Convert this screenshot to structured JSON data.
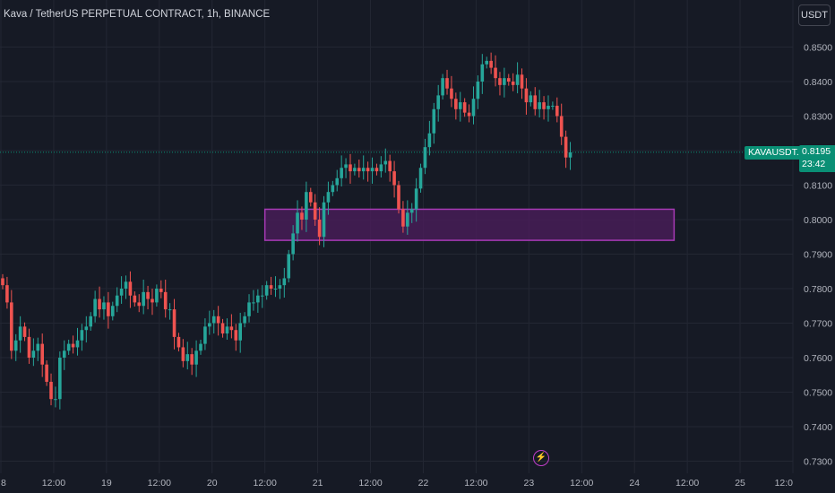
{
  "header": {
    "title": "Kava / TetherUS PERPETUAL CONTRACT, 1h, BINANCE",
    "currency_button": "USDT"
  },
  "price_marker": {
    "symbol": "KAVAUSDT.P",
    "price": "0.8195",
    "countdown": "23:42",
    "color": "#0a8f75"
  },
  "event_icon": "lightning-icon",
  "colors": {
    "background": "#161a25",
    "grid": "#232733",
    "up": "#26a69a",
    "down": "#ef5350",
    "zone_border": "#a73ab5",
    "zone_fill": "#4a1d5a",
    "axis_text": "#b2b5be"
  },
  "chart_data": {
    "type": "candlestick",
    "title": "Kava / TetherUS PERPETUAL CONTRACT, 1h, BINANCE",
    "timeframe": "1h",
    "y_ticks": [
      "0.8500",
      "0.8400",
      "0.8300",
      "0.8200",
      "0.8100",
      "0.8000",
      "0.7900",
      "0.7800",
      "0.7700",
      "0.7600",
      "0.7500",
      "0.7400",
      "0.7300"
    ],
    "ylim": [
      0.7295,
      0.8565
    ],
    "x_ticks": [
      "8",
      "12:00",
      "19",
      "12:00",
      "20",
      "12:00",
      "21",
      "12:00",
      "22",
      "12:00",
      "23",
      "12:00",
      "24",
      "12:00",
      "25",
      "12:0"
    ],
    "x_tick_hours": [
      0,
      12,
      24,
      36,
      48,
      60,
      72,
      84,
      96,
      108,
      120,
      132,
      144,
      156,
      168,
      180
    ],
    "last_price": 0.8195,
    "zone": {
      "hour_start": 60,
      "hour_end": 153,
      "price_low": 0.794,
      "price_high": 0.803
    },
    "candles_close": [
      0.781,
      0.776,
      0.762,
      0.765,
      0.769,
      0.766,
      0.76,
      0.762,
      0.764,
      0.758,
      0.753,
      0.748,
      0.748,
      0.76,
      0.762,
      0.764,
      0.763,
      0.765,
      0.768,
      0.769,
      0.772,
      0.777,
      0.774,
      0.776,
      0.772,
      0.775,
      0.778,
      0.78,
      0.782,
      0.778,
      0.776,
      0.775,
      0.779,
      0.777,
      0.776,
      0.78,
      0.779,
      0.774,
      0.774,
      0.766,
      0.763,
      0.759,
      0.761,
      0.758,
      0.762,
      0.764,
      0.769,
      0.77,
      0.772,
      0.77,
      0.767,
      0.769,
      0.768,
      0.765,
      0.77,
      0.772,
      0.776,
      0.776,
      0.778,
      0.778,
      0.781,
      0.78,
      0.78,
      0.781,
      0.783,
      0.79,
      0.796,
      0.802,
      0.8,
      0.808,
      0.805,
      0.8,
      0.795,
      0.805,
      0.808,
      0.81,
      0.812,
      0.815,
      0.816,
      0.814,
      0.815,
      0.814,
      0.815,
      0.814,
      0.815,
      0.814,
      0.816,
      0.817,
      0.814,
      0.81,
      0.803,
      0.798,
      0.802,
      0.803,
      0.809,
      0.815,
      0.821,
      0.825,
      0.832,
      0.836,
      0.841,
      0.838,
      0.835,
      0.832,
      0.834,
      0.831,
      0.83,
      0.835,
      0.84,
      0.845,
      0.846,
      0.844,
      0.841,
      0.839,
      0.841,
      0.84,
      0.839,
      0.842,
      0.838,
      0.834,
      0.836,
      0.832,
      0.834,
      0.832,
      0.833,
      0.833,
      0.83,
      0.824,
      0.818,
      0.8195
    ]
  }
}
